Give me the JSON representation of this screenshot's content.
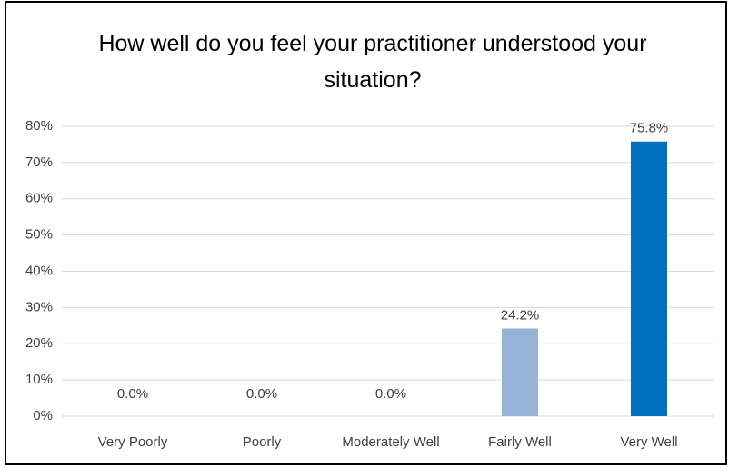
{
  "chart_data": {
    "type": "bar",
    "title": "How well do you feel your practitioner understood your situation?",
    "categories": [
      "Very Poorly",
      "Poorly",
      "Moderately Well",
      "Fairly Well",
      "Very Well"
    ],
    "values": [
      0,
      0,
      0,
      24.2,
      75.8
    ],
    "value_labels": [
      "0.0%",
      "0.0%",
      "0.0%",
      "24.2%",
      "75.8%"
    ],
    "colors": [
      "#95b3d7",
      "#95b3d7",
      "#95b3d7",
      "#95b3d7",
      "#0070c0"
    ],
    "ylim": [
      0,
      80
    ],
    "yticks": [
      {
        "value": 0,
        "label": "0%"
      },
      {
        "value": 10,
        "label": "10%"
      },
      {
        "value": 20,
        "label": "20%"
      },
      {
        "value": 30,
        "label": "30%"
      },
      {
        "value": 40,
        "label": "40%"
      },
      {
        "value": 50,
        "label": "50%"
      },
      {
        "value": 60,
        "label": "60%"
      },
      {
        "value": 70,
        "label": "70%"
      },
      {
        "value": 80,
        "label": "80%"
      }
    ],
    "grid": true
  }
}
